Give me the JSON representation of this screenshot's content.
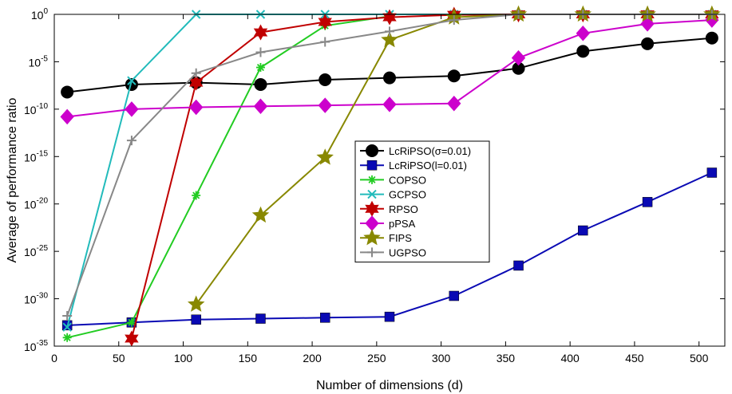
{
  "chart_data": {
    "type": "line",
    "title": "",
    "xlabel": "Number of dimensions (d)",
    "ylabel": "Average of performance ratio",
    "xlim": [
      0,
      520
    ],
    "ylim_exponent": [
      -35,
      0
    ],
    "y_scale": "log",
    "grid": false,
    "legend_position": "center-right",
    "x_ticks": [
      0,
      50,
      100,
      150,
      200,
      250,
      300,
      350,
      400,
      450,
      500
    ],
    "y_ticks_exponent": [
      0,
      -5,
      -10,
      -15,
      -20,
      -25,
      -30,
      -35
    ],
    "series": [
      {
        "name": "LcRiPSO(σ=0.01)",
        "color": "#000000",
        "marker": "circle",
        "x": [
          10,
          60,
          110,
          160,
          210,
          260,
          310,
          360,
          410,
          460,
          510
        ],
        "y_exponent": [
          -8.2,
          -7.4,
          -7.2,
          -7.4,
          -6.9,
          -6.7,
          -6.5,
          -5.7,
          -3.9,
          -3.1,
          -2.5
        ]
      },
      {
        "name": "LcRiPSO(l=0.01)",
        "color": "#0a0ab4",
        "marker": "square",
        "x": [
          10,
          60,
          110,
          160,
          210,
          260,
          310,
          360,
          410,
          460,
          510
        ],
        "y_exponent": [
          -32.8,
          -32.5,
          -32.2,
          -32.1,
          -32.0,
          -31.9,
          -29.7,
          -26.5,
          -22.8,
          -19.8,
          -16.7
        ]
      },
      {
        "name": "COPSO",
        "color": "#22cc22",
        "marker": "asterisk",
        "x": [
          10,
          60,
          110,
          160,
          210,
          260
        ],
        "y_exponent": [
          -34.1,
          -32.5,
          -19.1,
          -5.6,
          -1.2,
          -0.2
        ]
      },
      {
        "name": "GCPSO",
        "color": "#22bbbb",
        "marker": "x",
        "x": [
          10,
          60,
          110,
          160,
          210,
          260,
          310,
          360,
          410,
          460,
          510
        ],
        "y_exponent": [
          -33.0,
          -7.0,
          0,
          0,
          0,
          0,
          0,
          0,
          0,
          0,
          0
        ]
      },
      {
        "name": "RPSO",
        "color": "#c00000",
        "marker": "hexagram",
        "x": [
          60,
          110,
          160,
          210,
          260,
          310,
          360,
          410,
          460,
          510
        ],
        "y_exponent": [
          -34.2,
          -7.2,
          -1.9,
          -0.8,
          -0.3,
          -0.05,
          0,
          0,
          0,
          0
        ]
      },
      {
        "name": "pPSA",
        "color": "#cc00cc",
        "marker": "diamond",
        "x": [
          10,
          60,
          110,
          160,
          210,
          260,
          310,
          360,
          410,
          460,
          510
        ],
        "y_exponent": [
          -10.8,
          -10.0,
          -9.8,
          -9.7,
          -9.6,
          -9.5,
          -9.4,
          -4.6,
          -2.0,
          -1.0,
          -0.6
        ]
      },
      {
        "name": "FIPS",
        "color": "#888800",
        "marker": "pentagram",
        "x": [
          110,
          160,
          210,
          260,
          310,
          360,
          410,
          460,
          510
        ],
        "y_exponent": [
          -30.6,
          -21.2,
          -15.1,
          -2.7,
          -0.3,
          0,
          0,
          0,
          0
        ]
      },
      {
        "name": "UGPSO",
        "color": "#888888",
        "marker": "plus",
        "x": [
          10,
          60,
          110,
          160,
          210,
          260,
          310,
          360,
          410,
          460,
          510
        ],
        "y_exponent": [
          -31.8,
          -13.3,
          -6.2,
          -4.0,
          -2.9,
          -1.8,
          -0.6,
          0,
          0,
          0,
          0
        ]
      }
    ]
  }
}
